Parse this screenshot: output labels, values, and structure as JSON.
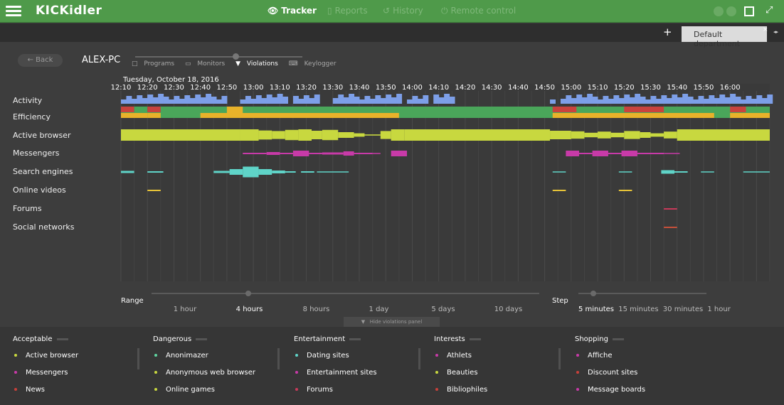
{
  "app": {
    "brand": "KICKidler",
    "menu_icon": "hamburger-icon"
  },
  "nav": [
    {
      "label": "Tracker",
      "icon": "eye-icon",
      "active": true
    },
    {
      "label": "Reports",
      "icon": "document-icon",
      "active": false
    },
    {
      "label": "History",
      "icon": "history-icon",
      "active": false
    },
    {
      "label": "Remote control",
      "icon": "remote-icon",
      "active": false
    }
  ],
  "tabs": {
    "plus": "+",
    "current": "Default department",
    "close": "×",
    "arrows": "◂▸"
  },
  "back": {
    "label": "← Back"
  },
  "computer": "ALEX-PC",
  "views": [
    {
      "label": "Programs",
      "icon": "□",
      "active": false
    },
    {
      "label": "Monitors",
      "icon": "▭",
      "active": false
    },
    {
      "label": "Violations",
      "icon": "▼",
      "active": true
    },
    {
      "label": "Keylogger",
      "icon": "⌨",
      "active": false
    }
  ],
  "chart_data": {
    "type": "timeline",
    "date": "Tuesday, October 18, 2016",
    "ticks": [
      "12:10",
      "12:20",
      "12:30",
      "12:40",
      "12:50",
      "13:00",
      "13:10",
      "13:20",
      "13:30",
      "13:40",
      "13:50",
      "14:00",
      "14:10",
      "14:20",
      "14:30",
      "14:40",
      "14:50",
      "15:00",
      "15:10",
      "15:20",
      "15:30",
      "15:40",
      "15:50",
      "16:00"
    ],
    "x_range_minutes": [
      0,
      245
    ],
    "rows": [
      "Activity",
      "Efficiency",
      "Active browser",
      "Messengers",
      "Search engines",
      "Online videos",
      "Forums",
      "Social networks"
    ],
    "colors": {
      "activity": "#7d9fe8",
      "efficiency_green": "#4aa65a",
      "efficiency_red": "#c9433e",
      "efficiency_yellow": "#e8b22a",
      "browser": "#c8d83f",
      "messengers": "#c83aa8",
      "search": "#5fd4c8",
      "videos": "#e8c438",
      "forums": "#c83a5a",
      "social": "#c8503a"
    },
    "activity": [
      [
        0,
        12
      ],
      [
        10,
        28
      ],
      [
        28,
        40
      ],
      [
        45,
        62
      ],
      [
        65,
        75
      ],
      [
        80,
        105
      ],
      [
        108,
        115
      ],
      [
        118,
        125
      ],
      [
        162,
        164
      ],
      [
        166,
        245
      ]
    ],
    "efficiency": {
      "top": [
        [
          0,
          5,
          "red"
        ],
        [
          5,
          10,
          "green"
        ],
        [
          10,
          15,
          "red"
        ],
        [
          15,
          245,
          "green"
        ],
        [
          163,
          172,
          "red"
        ],
        [
          190,
          205,
          "red"
        ],
        [
          230,
          236,
          "red"
        ]
      ],
      "bottom": [
        [
          0,
          10,
          "yellow"
        ],
        [
          10,
          15,
          "yellow"
        ],
        [
          30,
          105,
          "yellow"
        ],
        [
          40,
          46,
          "yellow_tall"
        ],
        [
          163,
          224,
          "yellow"
        ],
        [
          230,
          245,
          "yellow"
        ]
      ]
    },
    "active_browser": [
      [
        0,
        45,
        2
      ],
      [
        45,
        52,
        2
      ],
      [
        52,
        57,
        1.6
      ],
      [
        57,
        62,
        1.4
      ],
      [
        62,
        67,
        1.8
      ],
      [
        67,
        72,
        2
      ],
      [
        72,
        76,
        1.5
      ],
      [
        76,
        82,
        1.8
      ],
      [
        82,
        88,
        1
      ],
      [
        88,
        92,
        0.6
      ],
      [
        92,
        98,
        0.2
      ],
      [
        98,
        102,
        1.4
      ],
      [
        102,
        107,
        2
      ],
      [
        107,
        162,
        2
      ],
      [
        162,
        170,
        1.5
      ],
      [
        170,
        175,
        1.3
      ],
      [
        175,
        180,
        0.8
      ],
      [
        180,
        185,
        1.2
      ],
      [
        185,
        190,
        0.8
      ],
      [
        190,
        196,
        1.4
      ],
      [
        196,
        200,
        1
      ],
      [
        200,
        205,
        0.6
      ],
      [
        205,
        210,
        1.2
      ],
      [
        210,
        245,
        2
      ]
    ],
    "messengers": [
      [
        46,
        55,
        0.4
      ],
      [
        55,
        60,
        0.8
      ],
      [
        60,
        65,
        0.4
      ],
      [
        65,
        71,
        1.6
      ],
      [
        71,
        76,
        0.4
      ],
      [
        76,
        84,
        0.6
      ],
      [
        84,
        88,
        1.2
      ],
      [
        88,
        95,
        0.4
      ],
      [
        95,
        98,
        0.2
      ],
      [
        102,
        108,
        1.6
      ],
      [
        168,
        173,
        1.6
      ],
      [
        173,
        178,
        0.4
      ],
      [
        178,
        184,
        1.6
      ],
      [
        184,
        189,
        0.4
      ],
      [
        189,
        195,
        1.6
      ],
      [
        195,
        205,
        0.4
      ],
      [
        205,
        211,
        0.2
      ]
    ],
    "search": [
      [
        0,
        5,
        0.6
      ],
      [
        10,
        16,
        0.4
      ],
      [
        35,
        41,
        0.6
      ],
      [
        41,
        46,
        1.6
      ],
      [
        46,
        52,
        3
      ],
      [
        52,
        57,
        1.6
      ],
      [
        57,
        62,
        0.8
      ],
      [
        62,
        66,
        0.4
      ],
      [
        68,
        73,
        0.4
      ],
      [
        74,
        86,
        0.3
      ],
      [
        163,
        168,
        0.3
      ],
      [
        188,
        193,
        0.3
      ],
      [
        204,
        209,
        1
      ],
      [
        209,
        214,
        0.4
      ],
      [
        219,
        224,
        0.3
      ],
      [
        235,
        245,
        0.3
      ]
    ],
    "videos": [
      [
        10,
        15,
        0.4
      ],
      [
        163,
        168,
        0.4
      ],
      [
        188,
        193,
        0.4
      ]
    ],
    "forums": [
      [
        205,
        210,
        0.4
      ]
    ],
    "social": [
      [
        205,
        210,
        0.4
      ]
    ]
  },
  "range": {
    "label": "Range",
    "options": [
      "1 hour",
      "4 hours",
      "8 hours",
      "1 day",
      "5 days",
      "10 days"
    ],
    "selected": "4 hours"
  },
  "step": {
    "label": "Step",
    "options": [
      "5 minutes",
      "15 minutes",
      "30 minutes",
      "1 hour"
    ],
    "selected": "5 minutes"
  },
  "hide_panel": {
    "label": "Hide violations panel",
    "icon": "chevron-down-icon"
  },
  "violations": [
    {
      "title": "Acceptable",
      "items": [
        {
          "label": "Active browser",
          "color": "#c8d83f"
        },
        {
          "label": "Messengers",
          "color": "#c83aa8"
        },
        {
          "label": "News",
          "color": "#c8403a"
        }
      ]
    },
    {
      "title": "Dangerous",
      "items": [
        {
          "label": "Anonimazer",
          "color": "#5fd4a0"
        },
        {
          "label": "Anonymous web browser",
          "color": "#c8d83f"
        },
        {
          "label": "Online games",
          "color": "#c8d83f"
        }
      ]
    },
    {
      "title": "Entertainment",
      "items": [
        {
          "label": "Dating sites",
          "color": "#5fd4c8"
        },
        {
          "label": "Entertainment sites",
          "color": "#c83aa8"
        },
        {
          "label": "Forums",
          "color": "#c83a5a"
        }
      ]
    },
    {
      "title": "Interests",
      "items": [
        {
          "label": "Athlets",
          "color": "#c83aa8"
        },
        {
          "label": "Beauties",
          "color": "#c8d83f"
        },
        {
          "label": "Bibliophiles",
          "color": "#c8403a"
        }
      ]
    },
    {
      "title": "Shopping",
      "items": [
        {
          "label": "Affiche",
          "color": "#c83aa8"
        },
        {
          "label": "Discount sites",
          "color": "#c8403a"
        },
        {
          "label": "Message boards",
          "color": "#c83aa8"
        }
      ]
    }
  ]
}
